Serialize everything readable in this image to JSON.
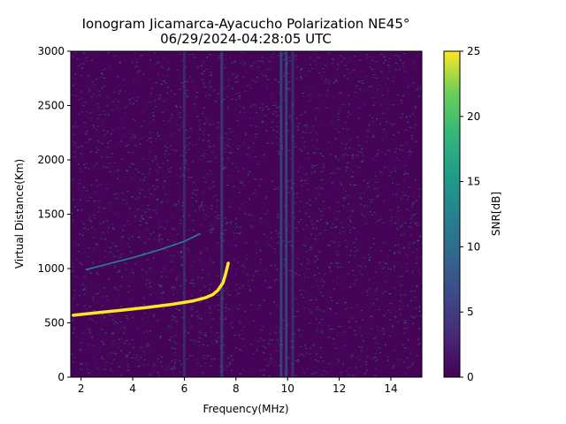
{
  "chart_data": {
    "type": "heatmap",
    "title": "Ionogram Jicamarca-Ayacucho Polarization NE45°",
    "subtitle": "06/29/2024-04:28:05 UTC",
    "xlabel": "Frequency(MHz)",
    "ylabel": "Virtual Distance(Km)",
    "xlim": [
      1.6,
      15.2
    ],
    "ylim": [
      0,
      3000
    ],
    "x_ticks": [
      2,
      4,
      6,
      8,
      10,
      12,
      14
    ],
    "x_tick_labels": [
      "2",
      "4",
      "6",
      "8",
      "10",
      "12",
      "14"
    ],
    "y_ticks": [
      0,
      500,
      1000,
      1500,
      2000,
      2500,
      3000
    ],
    "y_tick_labels": [
      "0",
      "500",
      "1000",
      "1500",
      "2000",
      "2500",
      "3000"
    ],
    "colorbar": {
      "label": "SNR[dB]",
      "range": [
        0,
        25
      ],
      "ticks": [
        0,
        5,
        10,
        15,
        20,
        25
      ],
      "tick_labels": [
        "0",
        "5",
        "10",
        "15",
        "20",
        "25"
      ],
      "colormap": "viridis"
    },
    "traces": [
      {
        "snr_db": 25,
        "points": [
          [
            1.7,
            570
          ],
          [
            2.5,
            590
          ],
          [
            3.5,
            615
          ],
          [
            4.5,
            640
          ],
          [
            5.5,
            670
          ],
          [
            6.3,
            700
          ],
          [
            6.8,
            730
          ],
          [
            7.1,
            760
          ],
          [
            7.3,
            800
          ],
          [
            7.5,
            870
          ],
          [
            7.6,
            950
          ],
          [
            7.7,
            1050
          ]
        ]
      },
      {
        "snr_db": 12,
        "points": [
          [
            2.2,
            990
          ],
          [
            3.0,
            1040
          ],
          [
            4.0,
            1100
          ],
          [
            5.0,
            1170
          ],
          [
            6.0,
            1250
          ],
          [
            6.6,
            1320
          ]
        ]
      }
    ]
  }
}
